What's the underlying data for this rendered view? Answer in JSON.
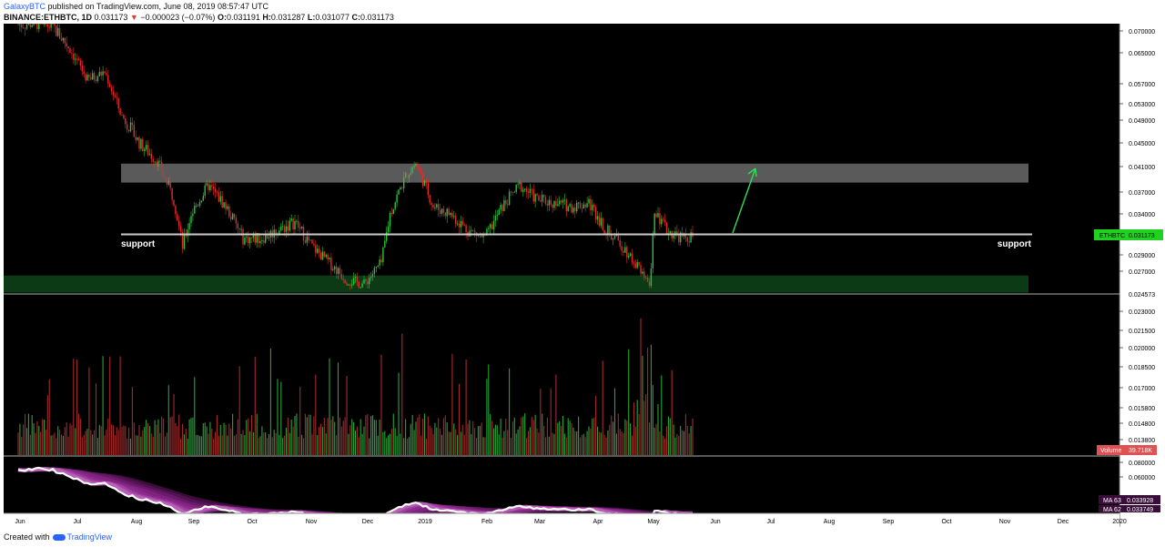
{
  "header": {
    "author": "GalaxyBTC",
    "published": "published on TradingView.com, June 08, 2019 08:57:47 UTC",
    "symbol": "BINANCE:ETHBTC, 1D",
    "last": "0.031173",
    "change_arrow": "▼",
    "change": "−0.000023 (−0.07%)",
    "ohlc": [
      {
        "label": "O:",
        "value": "0.031191"
      },
      {
        "label": "H:",
        "value": "0.031287"
      },
      {
        "label": "L:",
        "value": "0.031077"
      },
      {
        "label": "C:",
        "value": "0.031173"
      }
    ]
  },
  "footer": {
    "created_with": "Created with",
    "brand": "TradingView"
  },
  "colors": {
    "background": "#000000",
    "up": "#26c53a",
    "down": "#e52a2a",
    "resistance_zone": "#5a5a5a",
    "support_zone": "#0c3a14",
    "support_line": "#cccccc",
    "arrow": "#33dd55",
    "price_badge": "#1fd21f",
    "volume_badge": "#e05252",
    "ma_fill": "#8e2a8e",
    "ma_line": "#ffffff"
  },
  "chart_data": {
    "type": "candlestick",
    "symbol": "ETHBTC",
    "x_months": [
      "Jun",
      "Jul",
      "Aug",
      "Sep",
      "Oct",
      "Nov",
      "Dec",
      "2019",
      "Feb",
      "Mar",
      "Apr",
      "May",
      "Jun",
      "Jul",
      "Aug",
      "Sep",
      "Oct",
      "Nov",
      "Dec",
      "2020"
    ],
    "price": {
      "ylim": [
        0.0245,
        0.0715
      ],
      "ticks": [
        "0.070000",
        "0.065000",
        "0.057000",
        "0.053000",
        "0.049000",
        "0.045000",
        "0.041000",
        "0.037000",
        "0.034000",
        "0.029000",
        "0.027000"
      ],
      "tick_values": [
        0.07,
        0.065,
        0.057,
        0.053,
        0.049,
        0.045,
        0.041,
        0.037,
        0.034,
        0.029,
        0.027
      ],
      "low_marker": "0.024573",
      "current_label": "ETHBTC",
      "current_value": "0.031173",
      "anchors": [
        {
          "d": 0,
          "p": 0.0715
        },
        {
          "d": 10,
          "p": 0.072
        },
        {
          "d": 20,
          "p": 0.071
        },
        {
          "d": 30,
          "p": 0.066
        },
        {
          "d": 40,
          "p": 0.058
        },
        {
          "d": 50,
          "p": 0.06
        },
        {
          "d": 60,
          "p": 0.05
        },
        {
          "d": 70,
          "p": 0.045
        },
        {
          "d": 80,
          "p": 0.042
        },
        {
          "d": 90,
          "p": 0.036
        },
        {
          "d": 95,
          "p": 0.03
        },
        {
          "d": 100,
          "p": 0.034
        },
        {
          "d": 110,
          "p": 0.038
        },
        {
          "d": 120,
          "p": 0.035
        },
        {
          "d": 130,
          "p": 0.031
        },
        {
          "d": 140,
          "p": 0.031
        },
        {
          "d": 150,
          "p": 0.032
        },
        {
          "d": 160,
          "p": 0.033
        },
        {
          "d": 170,
          "p": 0.03
        },
        {
          "d": 180,
          "p": 0.028
        },
        {
          "d": 190,
          "p": 0.026
        },
        {
          "d": 200,
          "p": 0.0255
        },
        {
          "d": 210,
          "p": 0.028
        },
        {
          "d": 215,
          "p": 0.034
        },
        {
          "d": 225,
          "p": 0.04
        },
        {
          "d": 230,
          "p": 0.0415
        },
        {
          "d": 240,
          "p": 0.035
        },
        {
          "d": 250,
          "p": 0.034
        },
        {
          "d": 260,
          "p": 0.032
        },
        {
          "d": 270,
          "p": 0.031
        },
        {
          "d": 280,
          "p": 0.035
        },
        {
          "d": 290,
          "p": 0.038
        },
        {
          "d": 300,
          "p": 0.036
        },
        {
          "d": 310,
          "p": 0.0355
        },
        {
          "d": 320,
          "p": 0.035
        },
        {
          "d": 330,
          "p": 0.0355
        },
        {
          "d": 340,
          "p": 0.032
        },
        {
          "d": 350,
          "p": 0.03
        },
        {
          "d": 360,
          "p": 0.027
        },
        {
          "d": 365,
          "p": 0.025
        },
        {
          "d": 368,
          "p": 0.034
        },
        {
          "d": 375,
          "p": 0.032
        },
        {
          "d": 385,
          "p": 0.031
        },
        {
          "d": 390,
          "p": 0.0312
        }
      ],
      "resistance_zone": [
        0.0385,
        0.0415
      ],
      "support_zone": [
        0.0245,
        0.0265
      ],
      "support_level": 0.0315,
      "support_labels": [
        "support",
        "support"
      ],
      "projection_target": 0.0407
    },
    "volume": {
      "ticks": [
        "0.023000",
        "0.021500",
        "0.020000",
        "0.018500",
        "0.017000",
        "0.015800",
        "0.014800",
        "0.013800"
      ],
      "label": "Volume",
      "value": "39.718K"
    },
    "ma": {
      "ticks": [
        "0.080000",
        "0.060000"
      ],
      "labels": [
        {
          "name": "MA 63",
          "value": "0.033928"
        },
        {
          "name": "MA 62",
          "value": "0.033749"
        }
      ]
    }
  }
}
